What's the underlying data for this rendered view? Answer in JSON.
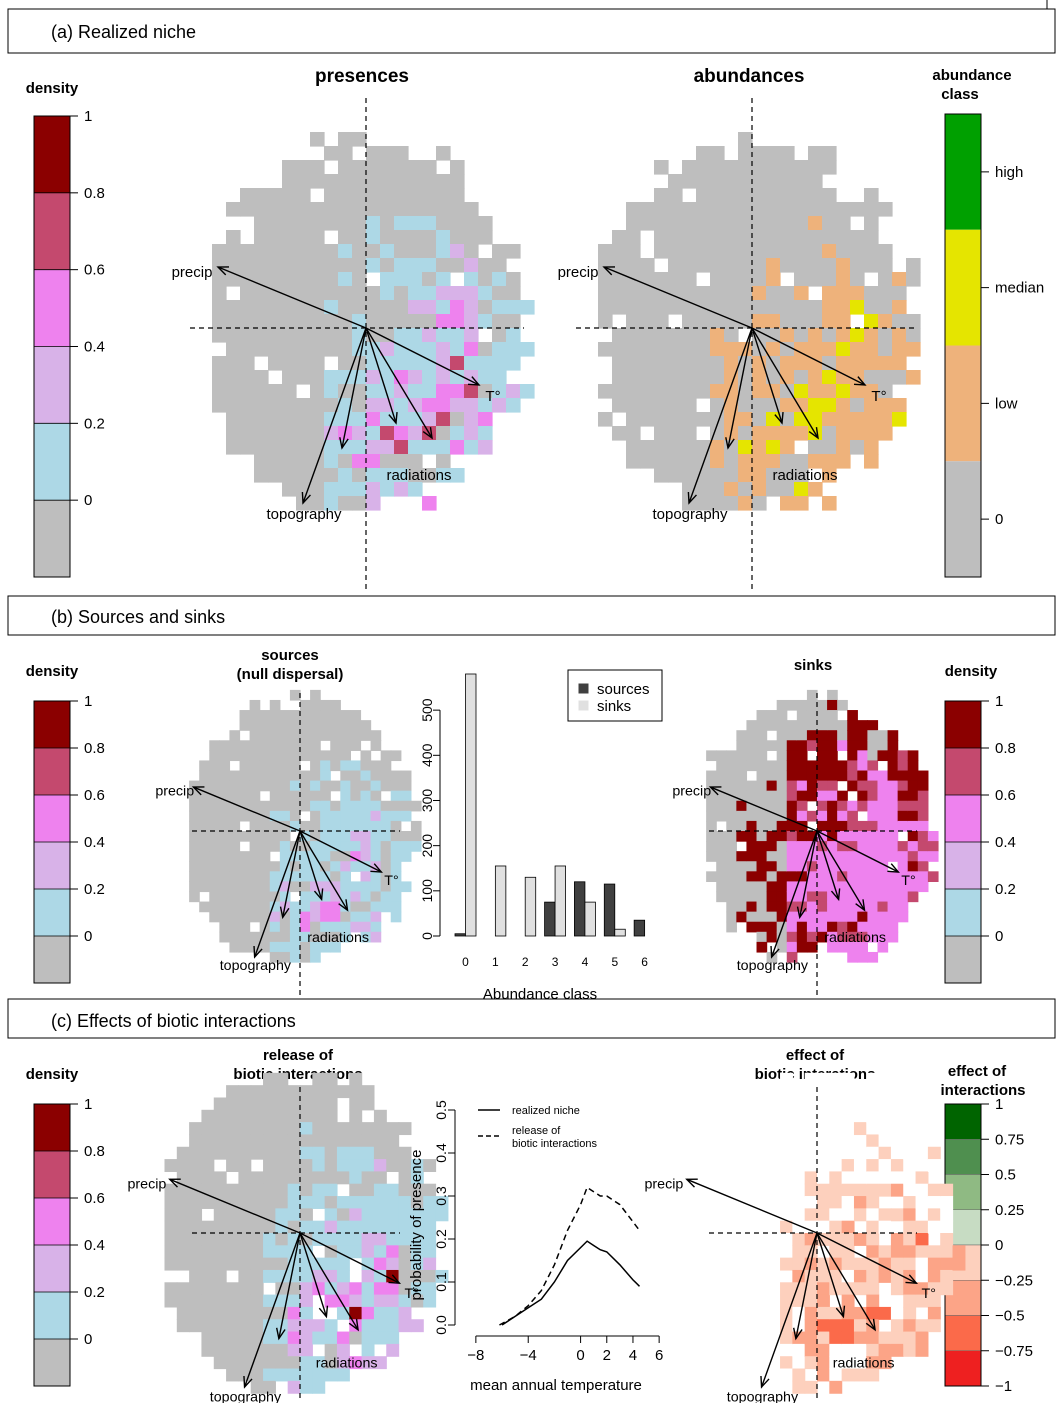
{
  "panels": {
    "a": {
      "label": "(a) Realized niche"
    },
    "b": {
      "label": "(b) Sources and sinks"
    },
    "c": {
      "label": "(c) Effects of biotic interactions"
    }
  },
  "density_legend": {
    "title": "density",
    "ticks": [
      "1",
      "0.8",
      "0.6",
      "0.4",
      "0.2",
      "0"
    ],
    "colors": [
      "#8b0000",
      "#c4496e",
      "#ee82ee",
      "#d8b2e8",
      "#add8e6",
      "#bebebe"
    ]
  },
  "abundance_legend": {
    "title_line1": "abundance",
    "title_line2": "class",
    "labels": [
      "high",
      "median",
      "low",
      "0"
    ],
    "colors": [
      "#00a000",
      "#e5e500",
      "#eeb27b",
      "#bebebe"
    ]
  },
  "interaction_legend": {
    "title_line1": "effect of",
    "title_line2": "interactions",
    "ticks": [
      "1",
      "0.75",
      "0.5",
      "0.25",
      "0",
      "−0.25",
      "−0.5",
      "−0.75",
      "−1"
    ],
    "colors": [
      "#006400",
      "#4f8f4f",
      "#8fba83",
      "#c7dcc3",
      "#fdd0bd",
      "#fca487",
      "#fb6a4a",
      "#ee2020"
    ]
  },
  "maps": {
    "presences_title": "presences",
    "abundances_title": "abundances",
    "sources_title_line1": "sources",
    "sources_title_line2": "(null dispersal)",
    "sinks_title": "sinks",
    "release_title_line1": "release of",
    "release_title_line2": "biotic interactions",
    "effect_title_line1": "effect of",
    "effect_title_line2": "biotic interations",
    "arrow_labels": {
      "precip": "precip",
      "temp": "T°",
      "radiations": "radiations",
      "topography": "topography"
    }
  },
  "chart_data": [
    {
      "type": "bar",
      "xlabel": "Abundance class",
      "ylabel": "",
      "categories": [
        "0",
        "1",
        "2",
        "3",
        "4",
        "5",
        "6"
      ],
      "y_ticks": [
        0,
        100,
        200,
        300,
        400,
        500
      ],
      "ylim": [
        0,
        580
      ],
      "series": [
        {
          "name": "sources",
          "color": "#404040",
          "values": [
            5,
            0,
            0,
            75,
            120,
            115,
            35
          ]
        },
        {
          "name": "sinks",
          "color": "#e0e0e0",
          "values": [
            580,
            155,
            130,
            155,
            75,
            15,
            0
          ]
        }
      ],
      "legend": "top-right"
    },
    {
      "type": "line",
      "xlabel": "mean annual temperature",
      "ylabel": "probability of presence",
      "xlim": [
        -8.6,
        6.6
      ],
      "ylim": [
        0,
        0.5
      ],
      "x_ticks": [
        -8,
        -4,
        0,
        2,
        4,
        6
      ],
      "x_tick_labels": [
        "−8",
        "−4",
        "0",
        "2",
        "4",
        "6"
      ],
      "y_ticks": [
        0,
        0.1,
        0.2,
        0.3,
        0.4,
        0.5
      ],
      "y_tick_labels": [
        "0.0",
        "0.1",
        "0.2",
        "0.3",
        "0.4",
        "0.5"
      ],
      "legend": "top-right",
      "series": [
        {
          "name": "realized niche",
          "dash": "solid",
          "x": [
            -6,
            -5,
            -4,
            -3,
            -2,
            -1,
            0,
            0.5,
            1,
            1.5,
            2,
            3,
            4,
            4.5
          ],
          "y": [
            0.0,
            0.02,
            0.04,
            0.06,
            0.1,
            0.15,
            0.18,
            0.195,
            0.185,
            0.175,
            0.17,
            0.14,
            0.105,
            0.09
          ]
        },
        {
          "name": "release of biotic interactions",
          "dash": "dashed",
          "x": [
            -6.2,
            -5,
            -4,
            -3,
            -2,
            -1,
            0,
            0.5,
            1,
            1.5,
            2,
            3,
            4,
            4.5
          ],
          "y": [
            0.0,
            0.02,
            0.045,
            0.08,
            0.14,
            0.22,
            0.28,
            0.32,
            0.31,
            0.3,
            0.3,
            0.28,
            0.24,
            0.22
          ]
        }
      ],
      "legend_labels": [
        "realized niche",
        "release of",
        "biotic interactions"
      ]
    }
  ]
}
